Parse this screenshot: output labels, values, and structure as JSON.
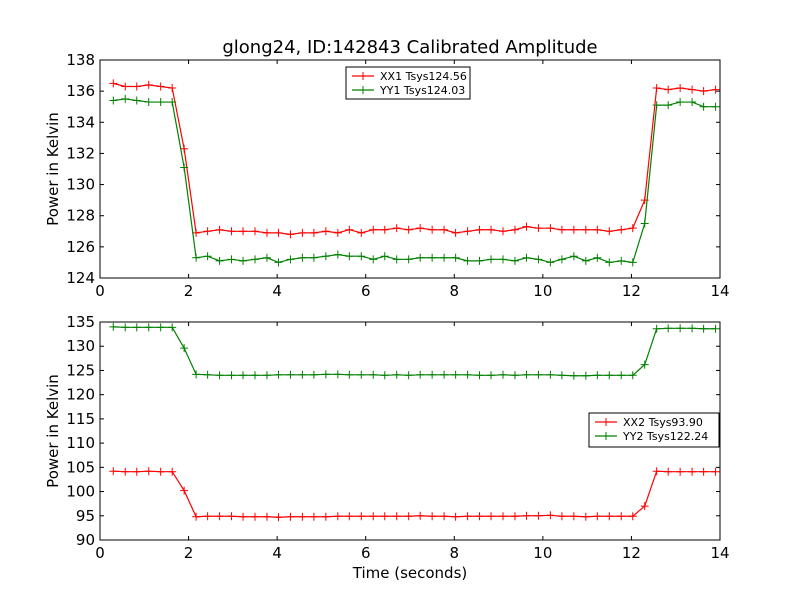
{
  "figure": {
    "title": "glong24, ID:142843 Calibrated Amplitude",
    "xlabel": "Time (seconds)"
  },
  "chart_data": [
    {
      "type": "line",
      "title": "glong24, ID:142843 Calibrated Amplitude",
      "xlabel": "",
      "ylabel": "Power in Kelvin",
      "xlim": [
        0,
        14
      ],
      "ylim": [
        124,
        138
      ],
      "xticks": [
        0,
        2,
        4,
        6,
        8,
        10,
        12,
        14
      ],
      "yticks": [
        124,
        126,
        128,
        130,
        132,
        134,
        136,
        138
      ],
      "legend_position": "top-center",
      "x": [
        0.3,
        0.57,
        0.83,
        1.1,
        1.37,
        1.63,
        1.9,
        2.17,
        2.43,
        2.7,
        2.97,
        3.23,
        3.5,
        3.77,
        4.03,
        4.3,
        4.57,
        4.83,
        5.1,
        5.37,
        5.63,
        5.9,
        6.17,
        6.43,
        6.7,
        6.97,
        7.23,
        7.5,
        7.77,
        8.03,
        8.3,
        8.57,
        8.83,
        9.1,
        9.37,
        9.63,
        9.9,
        10.17,
        10.43,
        10.7,
        10.97,
        11.23,
        11.5,
        11.77,
        12.03,
        12.3,
        12.57,
        12.83,
        13.1,
        13.37,
        13.63,
        13.9
      ],
      "series": [
        {
          "name": "XX1 Tsys124.56",
          "color": "#ff0000",
          "values": [
            136.5,
            136.3,
            136.3,
            136.4,
            136.3,
            136.2,
            132.3,
            126.9,
            127.0,
            127.1,
            127.0,
            127.0,
            127.0,
            126.9,
            126.9,
            126.8,
            126.9,
            126.9,
            127.0,
            126.9,
            127.1,
            126.9,
            127.1,
            127.1,
            127.2,
            127.1,
            127.2,
            127.1,
            127.1,
            126.9,
            127.0,
            127.1,
            127.1,
            127.0,
            127.1,
            127.3,
            127.2,
            127.2,
            127.1,
            127.1,
            127.1,
            127.1,
            127.0,
            127.1,
            127.2,
            129.0,
            136.2,
            136.1,
            136.2,
            136.1,
            136.0,
            136.1
          ]
        },
        {
          "name": "YY1 Tsys124.03",
          "color": "#008000",
          "values": [
            135.4,
            135.5,
            135.4,
            135.3,
            135.3,
            135.3,
            131.1,
            125.3,
            125.4,
            125.1,
            125.2,
            125.1,
            125.2,
            125.3,
            125.0,
            125.2,
            125.3,
            125.3,
            125.4,
            125.5,
            125.4,
            125.4,
            125.2,
            125.4,
            125.2,
            125.2,
            125.3,
            125.3,
            125.3,
            125.3,
            125.1,
            125.1,
            125.2,
            125.2,
            125.1,
            125.3,
            125.2,
            125.0,
            125.2,
            125.4,
            125.1,
            125.3,
            125.0,
            125.1,
            125.0,
            127.5,
            135.1,
            135.1,
            135.3,
            135.3,
            135.0,
            135.0
          ]
        }
      ]
    },
    {
      "type": "line",
      "title": "",
      "xlabel": "Time (seconds)",
      "ylabel": "Power in Kelvin",
      "xlim": [
        0,
        14
      ],
      "ylim": [
        90,
        135
      ],
      "xticks": [
        0,
        2,
        4,
        6,
        8,
        10,
        12,
        14
      ],
      "yticks": [
        90,
        95,
        100,
        105,
        110,
        115,
        120,
        125,
        130,
        135
      ],
      "legend_position": "center-right",
      "x": [
        0.3,
        0.57,
        0.83,
        1.1,
        1.37,
        1.63,
        1.9,
        2.17,
        2.43,
        2.7,
        2.97,
        3.23,
        3.5,
        3.77,
        4.03,
        4.3,
        4.57,
        4.83,
        5.1,
        5.37,
        5.63,
        5.9,
        6.17,
        6.43,
        6.7,
        6.97,
        7.23,
        7.5,
        7.77,
        8.03,
        8.3,
        8.57,
        8.83,
        9.1,
        9.37,
        9.63,
        9.9,
        10.17,
        10.43,
        10.7,
        10.97,
        11.23,
        11.5,
        11.77,
        12.03,
        12.3,
        12.57,
        12.83,
        13.1,
        13.37,
        13.63,
        13.9
      ],
      "series": [
        {
          "name": "XX2 Tsys93.90",
          "color": "#ff0000",
          "values": [
            104.2,
            104.1,
            104.1,
            104.2,
            104.1,
            104.1,
            100.2,
            94.8,
            94.9,
            94.9,
            94.9,
            94.8,
            94.8,
            94.8,
            94.7,
            94.8,
            94.8,
            94.8,
            94.8,
            94.9,
            94.9,
            94.9,
            94.9,
            94.9,
            94.9,
            94.9,
            95.0,
            94.9,
            94.9,
            94.8,
            94.9,
            94.9,
            94.9,
            94.9,
            94.9,
            95.0,
            95.0,
            95.1,
            94.9,
            94.9,
            94.8,
            94.9,
            94.9,
            94.9,
            94.9,
            97.0,
            104.2,
            104.1,
            104.1,
            104.1,
            104.1,
            104.1
          ]
        },
        {
          "name": "YY2 Tsys122.24",
          "color": "#008000",
          "values": [
            134.0,
            133.9,
            133.9,
            133.9,
            133.9,
            133.9,
            129.6,
            124.2,
            124.1,
            124.0,
            124.0,
            124.0,
            124.0,
            124.0,
            124.1,
            124.1,
            124.1,
            124.1,
            124.2,
            124.2,
            124.1,
            124.1,
            124.1,
            124.0,
            124.1,
            124.0,
            124.1,
            124.1,
            124.1,
            124.1,
            124.1,
            124.0,
            124.0,
            124.1,
            124.0,
            124.1,
            124.1,
            124.1,
            124.0,
            123.9,
            123.9,
            124.0,
            124.0,
            124.0,
            124.0,
            126.2,
            133.6,
            133.7,
            133.7,
            133.7,
            133.6,
            133.6
          ]
        }
      ]
    }
  ]
}
